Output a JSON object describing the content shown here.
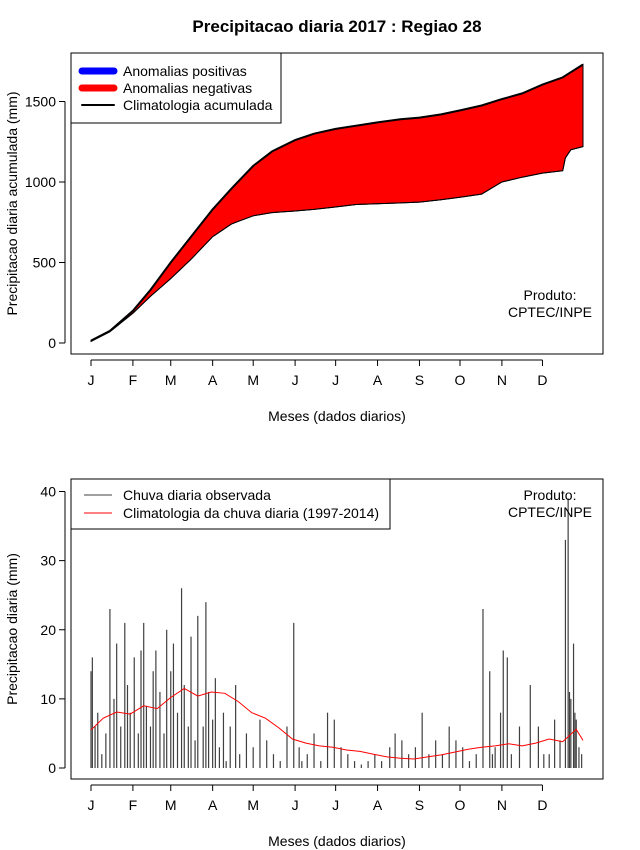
{
  "title": "Precipitacao diaria 2017 : Regiao 28",
  "watermark": "Produto:\nCPTEC/INPE",
  "colors": {
    "positive": "#0000ff",
    "negative": "#ff0000",
    "climatology_line": "#000000",
    "observed_bars": "#404040",
    "climatology_daily": "#ff0000"
  },
  "chart_data": [
    {
      "type": "area",
      "ylabel": "Precipitacao diaria acumulada (mm)",
      "xlabel": "Meses (dados diarios)",
      "xlim": [
        1,
        365
      ],
      "ylim": [
        0,
        1750
      ],
      "yticks": [
        0,
        500,
        1000,
        1500
      ],
      "xtick_days": [
        1,
        32,
        60,
        91,
        121,
        152,
        182,
        213,
        244,
        274,
        305,
        335
      ],
      "xtick_labels": [
        "J",
        "F",
        "M",
        "A",
        "M",
        "J",
        "J",
        "A",
        "S",
        "O",
        "N",
        "D"
      ],
      "legend": {
        "placement": "top-left",
        "entries": [
          "Anomalias positivas",
          "Anomalias negativas",
          "Climatologia acumulada"
        ]
      },
      "climatology_cumulative": {
        "days": [
          1,
          15,
          32,
          45,
          60,
          75,
          91,
          105,
          121,
          135,
          152,
          166,
          182,
          197,
          213,
          230,
          244,
          260,
          274,
          290,
          305,
          320,
          335,
          350,
          365
        ],
        "values": [
          15,
          75,
          200,
          330,
          500,
          660,
          830,
          960,
          1100,
          1190,
          1260,
          1300,
          1330,
          1350,
          1370,
          1390,
          1400,
          1420,
          1445,
          1475,
          1515,
          1550,
          1605,
          1650,
          1730
        ]
      },
      "observed_cumulative": {
        "days": [
          1,
          15,
          32,
          45,
          60,
          75,
          91,
          105,
          121,
          135,
          152,
          166,
          182,
          197,
          213,
          230,
          244,
          260,
          274,
          290,
          305,
          320,
          335,
          350,
          352,
          356,
          365
        ],
        "values": [
          10,
          70,
          185,
          290,
          400,
          520,
          660,
          740,
          790,
          810,
          820,
          830,
          845,
          860,
          865,
          870,
          875,
          890,
          905,
          925,
          1000,
          1030,
          1055,
          1070,
          1150,
          1200,
          1220
        ]
      }
    },
    {
      "type": "bar",
      "ylabel": "Precipitacao diaria (mm)",
      "xlabel": "Meses (dados diarios)",
      "xlim": [
        1,
        365
      ],
      "ylim": [
        0,
        40
      ],
      "yticks": [
        0,
        10,
        20,
        30,
        40
      ],
      "xtick_days": [
        1,
        32,
        60,
        91,
        121,
        152,
        182,
        213,
        244,
        274,
        305,
        335
      ],
      "xtick_labels": [
        "J",
        "F",
        "M",
        "A",
        "M",
        "J",
        "J",
        "A",
        "S",
        "O",
        "N",
        "D"
      ],
      "legend": {
        "placement": "top-left",
        "entries": [
          "Chuva diaria observada",
          "Climatologia da chuva diaria (1997-2014)"
        ]
      },
      "observed_daily": {
        "days": [
          1,
          2,
          4,
          6,
          9,
          12,
          15,
          18,
          20,
          23,
          26,
          28,
          30,
          33,
          36,
          38,
          40,
          42,
          45,
          47,
          49,
          52,
          55,
          57,
          60,
          62,
          65,
          68,
          70,
          73,
          75,
          78,
          80,
          84,
          86,
          88,
          91,
          93,
          96,
          99,
          101,
          104,
          108,
          111,
          116,
          121,
          126,
          131,
          136,
          141,
          146,
          151,
          155,
          157,
          161,
          166,
          171,
          176,
          181,
          186,
          191,
          196,
          201,
          206,
          211,
          216,
          222,
          226,
          231,
          236,
          241,
          246,
          251,
          256,
          261,
          266,
          271,
          276,
          281,
          286,
          291,
          296,
          298,
          300,
          304,
          306,
          309,
          312,
          318,
          326,
          332,
          336,
          340,
          344,
          348,
          352,
          354,
          355,
          356,
          358,
          359,
          360,
          362,
          364
        ],
        "values": [
          14,
          16,
          6,
          8,
          2,
          5,
          23,
          10,
          18,
          6,
          21,
          12,
          8,
          16,
          5,
          17,
          21,
          9,
          6,
          14,
          17,
          11,
          5,
          20,
          14,
          18,
          8,
          26,
          12,
          6,
          19,
          4,
          22,
          6,
          24,
          11,
          7,
          13,
          3,
          8,
          1,
          6,
          12,
          2,
          5,
          3,
          7,
          4,
          2,
          1,
          6,
          21,
          3,
          1,
          2,
          5,
          1,
          8,
          7,
          3,
          2,
          1,
          0.5,
          1,
          2,
          1,
          3,
          5,
          4,
          2,
          3,
          8,
          2,
          4,
          2,
          6,
          4,
          3,
          1,
          2,
          23,
          14,
          2,
          3,
          8,
          17,
          16,
          2,
          6,
          12,
          6,
          2,
          2,
          7,
          4,
          33,
          39,
          11,
          10,
          18,
          8,
          7,
          3,
          2
        ]
      },
      "climatology_daily": {
        "days": [
          1,
          10,
          20,
          30,
          40,
          50,
          60,
          70,
          80,
          90,
          100,
          110,
          120,
          130,
          140,
          150,
          160,
          170,
          180,
          190,
          200,
          210,
          220,
          230,
          240,
          250,
          260,
          270,
          280,
          290,
          300,
          310,
          320,
          330,
          340,
          350,
          360,
          365
        ],
        "values": [
          5.5,
          7.2,
          8.1,
          7.8,
          9.0,
          8.6,
          10.2,
          11.5,
          10.4,
          11.0,
          10.8,
          9.6,
          8.0,
          7.2,
          5.8,
          4.2,
          3.6,
          3.2,
          3.0,
          2.6,
          2.4,
          2.0,
          1.6,
          1.4,
          1.3,
          1.6,
          1.9,
          2.3,
          2.7,
          3.0,
          3.2,
          3.5,
          3.2,
          3.6,
          4.2,
          3.8,
          5.6,
          4.0
        ]
      }
    }
  ]
}
